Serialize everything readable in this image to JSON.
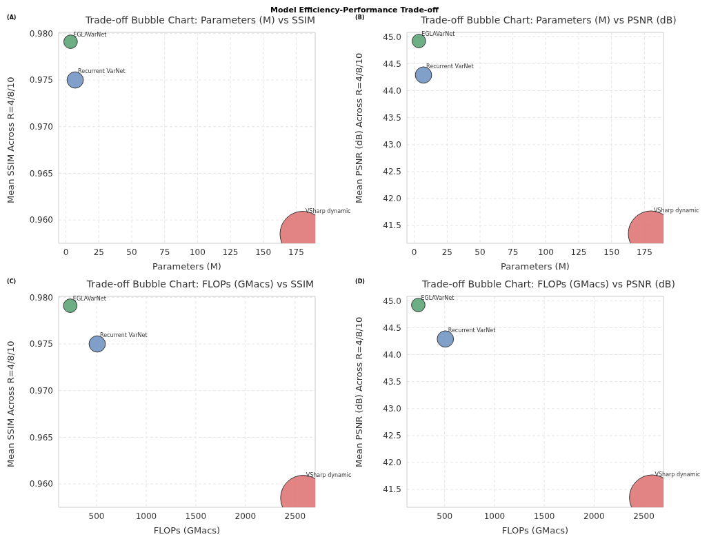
{
  "chart_data": [
    {
      "type": "bubble",
      "title": "Trade-off Bubble Chart: Parameters (M) vs SSIM",
      "xlabel": "Parameters (M)",
      "ylabel": "Mean SSIM Across R=4/8/10",
      "annotations": [
        "Model Efficiency-Performance Trade-off",
        "(A)"
      ],
      "xlim": [
        -5.6,
        189.5
      ],
      "xticks": [
        0,
        25,
        50,
        75,
        100,
        125,
        150,
        175
      ],
      "ylim": [
        0.9575,
        0.9801
      ],
      "yticks": [
        {
          "value": 0.96,
          "label": "0.960"
        },
        {
          "value": 0.965,
          "label": "0.965"
        },
        {
          "value": 0.97,
          "label": "0.970"
        },
        {
          "value": 0.975,
          "label": "0.975"
        },
        {
          "value": 0.98,
          "label": "0.980"
        }
      ],
      "grid": true,
      "legend": false,
      "series": [
        {
          "name": "EGLAVarNet",
          "color": "#55a06e",
          "x": [
            3.5
          ],
          "values": [
            0.9791
          ],
          "sizes": [
            0.09
          ]
        },
        {
          "name": "Recurrent VarNet",
          "color": "#6b8fbf",
          "x": [
            7
          ],
          "values": [
            0.975
          ],
          "sizes": [
            0.13
          ]
        },
        {
          "name": "VSharp dynamic",
          "color": "#dd6e6e",
          "x": [
            180
          ],
          "values": [
            0.9585
          ],
          "sizes": [
            1
          ]
        }
      ]
    },
    {
      "type": "bubble",
      "title": "Trade-off Bubble Chart: Parameters (M) vs PSNR (dB)",
      "xlabel": "Parameters (M)",
      "ylabel": "Mean PSNR (dB) Across R=4/8/10",
      "annotations": [
        "(B)"
      ],
      "xlim": [
        -5.6,
        189.5
      ],
      "xticks": [
        0,
        25,
        50,
        75,
        100,
        125,
        150,
        175
      ],
      "ylim": [
        41.17,
        45.08
      ],
      "yticks": [
        {
          "value": 41.5,
          "label": "41.5"
        },
        {
          "value": 42,
          "label": "42.0"
        },
        {
          "value": 42.5,
          "label": "42.5"
        },
        {
          "value": 43,
          "label": "43.0"
        },
        {
          "value": 43.5,
          "label": "43.5"
        },
        {
          "value": 44,
          "label": "44.0"
        },
        {
          "value": 44.5,
          "label": "44.5"
        },
        {
          "value": 45,
          "label": "45.0"
        }
      ],
      "grid": true,
      "legend": false,
      "series": [
        {
          "name": "EGLAVarNet",
          "color": "#55a06e",
          "x": [
            3.5
          ],
          "values": [
            44.92
          ],
          "sizes": [
            0.09
          ]
        },
        {
          "name": "Recurrent VarNet",
          "color": "#6b8fbf",
          "x": [
            7
          ],
          "values": [
            44.29
          ],
          "sizes": [
            0.13
          ]
        },
        {
          "name": "VSharp dynamic",
          "color": "#dd6e6e",
          "x": [
            180
          ],
          "values": [
            41.35
          ],
          "sizes": [
            1
          ]
        }
      ]
    },
    {
      "type": "bubble",
      "title": "Trade-off Bubble Chart: FLOPs (GMacs) vs SSIM",
      "xlabel": "FLOPs (GMacs)",
      "ylabel": "Mean SSIM Across R=4/8/10",
      "annotations": [
        "(C)"
      ],
      "xlim": [
        118,
        2703
      ],
      "xticks": [
        500,
        1000,
        1500,
        2000,
        2500
      ],
      "ylim": [
        0.9575,
        0.9801
      ],
      "yticks": [
        {
          "value": 0.96,
          "label": "0.960"
        },
        {
          "value": 0.965,
          "label": "0.965"
        },
        {
          "value": 0.97,
          "label": "0.970"
        },
        {
          "value": 0.975,
          "label": "0.975"
        },
        {
          "value": 0.98,
          "label": "0.980"
        }
      ],
      "grid": true,
      "legend": false,
      "series": [
        {
          "name": "EGLAVarNet",
          "color": "#55a06e",
          "x": [
            235
          ],
          "values": [
            0.9791
          ],
          "sizes": [
            0.09
          ]
        },
        {
          "name": "Recurrent VarNet",
          "color": "#6b8fbf",
          "x": [
            507
          ],
          "values": [
            0.975
          ],
          "sizes": [
            0.13
          ]
        },
        {
          "name": "VSharp dynamic",
          "color": "#dd6e6e",
          "x": [
            2583
          ],
          "values": [
            0.9585
          ],
          "sizes": [
            1
          ]
        }
      ]
    },
    {
      "type": "bubble",
      "title": "Trade-off Bubble Chart: FLOPs (GMacs) vs PSNR (dB)",
      "xlabel": "FLOPs (GMacs)",
      "ylabel": "Mean PSNR (dB) Across R=4/8/10",
      "annotations": [
        "(D)"
      ],
      "xlim": [
        121,
        2697
      ],
      "xticks": [
        500,
        1000,
        1500,
        2000,
        2500
      ],
      "ylim": [
        41.17,
        45.08
      ],
      "yticks": [
        {
          "value": 41.5,
          "label": "41.5"
        },
        {
          "value": 42,
          "label": "42.0"
        },
        {
          "value": 42.5,
          "label": "42.5"
        },
        {
          "value": 43,
          "label": "43.0"
        },
        {
          "value": 43.5,
          "label": "43.5"
        },
        {
          "value": 44,
          "label": "44.0"
        },
        {
          "value": 44.5,
          "label": "44.5"
        },
        {
          "value": 45,
          "label": "45.0"
        }
      ],
      "grid": true,
      "legend": false,
      "series": [
        {
          "name": "EGLAVarNet",
          "color": "#55a06e",
          "x": [
            235
          ],
          "values": [
            44.92
          ],
          "sizes": [
            0.09
          ]
        },
        {
          "name": "Recurrent VarNet",
          "color": "#6b8fbf",
          "x": [
            507
          ],
          "values": [
            44.29
          ],
          "sizes": [
            0.13
          ]
        },
        {
          "name": "VSharp dynamic",
          "color": "#dd6e6e",
          "x": [
            2583
          ],
          "values": [
            41.35
          ],
          "sizes": [
            1
          ]
        }
      ]
    }
  ]
}
